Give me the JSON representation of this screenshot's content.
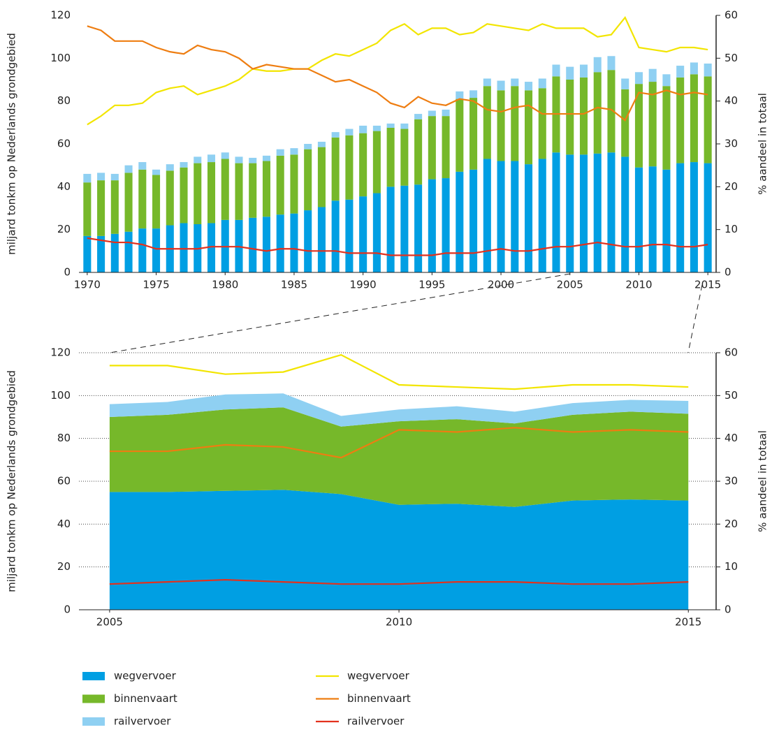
{
  "chart_data": [
    {
      "type": "bar",
      "ylabel": "miljard tonkm op Nederlands grondgebied",
      "y2label": "% aandeel in totaal",
      "x": [
        1970,
        1971,
        1972,
        1973,
        1974,
        1975,
        1976,
        1977,
        1978,
        1979,
        1980,
        1981,
        1982,
        1983,
        1984,
        1985,
        1986,
        1987,
        1988,
        1989,
        1990,
        1991,
        1992,
        1993,
        1994,
        1995,
        1996,
        1997,
        1998,
        1999,
        2000,
        2001,
        2002,
        2003,
        2004,
        2005,
        2006,
        2007,
        2008,
        2009,
        2010,
        2011,
        2012,
        2013,
        2014,
        2015
      ],
      "xlim": [
        1969.4,
        2015.6
      ],
      "xticks": [
        1970,
        1975,
        1980,
        1985,
        1990,
        1995,
        2000,
        2005,
        2010,
        2015
      ],
      "ylim": [
        0,
        120
      ],
      "yticks": [
        0,
        20,
        40,
        60,
        80,
        100,
        120
      ],
      "y2lim": [
        0,
        60
      ],
      "y2ticks": [
        0,
        10,
        20,
        30,
        40,
        50,
        60
      ],
      "grid": false,
      "series": [
        {
          "name": "wegvervoer",
          "color": "#009fe3",
          "values": [
            17,
            17,
            18,
            19,
            20.5,
            20.5,
            22,
            23,
            22.5,
            23,
            24.5,
            24.5,
            25.5,
            26,
            27,
            27.5,
            29,
            30.5,
            33.5,
            34,
            35.5,
            37,
            40,
            40.5,
            41,
            43.5,
            44,
            47,
            48,
            53,
            52,
            52,
            50.5,
            53,
            56,
            55,
            55,
            55.5,
            56,
            54,
            49,
            49.5,
            48,
            51,
            51.5,
            51
          ]
        },
        {
          "name": "binnenvaart",
          "color": "#76b82a",
          "values": [
            25,
            26,
            25,
            27.5,
            27.5,
            25,
            25.5,
            26,
            28.5,
            28.5,
            28.5,
            26.5,
            25.5,
            26,
            27.5,
            27.5,
            28.5,
            28,
            29.5,
            30,
            29.5,
            29,
            27.5,
            26.5,
            30.5,
            29.5,
            29,
            34,
            33.5,
            34,
            33,
            35,
            34.5,
            33,
            35.5,
            35,
            36,
            38,
            38.5,
            31.5,
            39,
            39.5,
            39,
            40,
            41,
            40.5
          ]
        },
        {
          "name": "railvervoer",
          "color": "#8fd0f2",
          "values": [
            4,
            3.5,
            3,
            3.5,
            3.5,
            2.5,
            3,
            2.5,
            3,
            3.5,
            3,
            3,
            2.5,
            2.5,
            3,
            3,
            2.5,
            2.5,
            2.5,
            3,
            3.5,
            2.5,
            2,
            2.5,
            2.5,
            2.5,
            3,
            3.5,
            3.5,
            3.5,
            4.5,
            3.5,
            4,
            4.5,
            5.5,
            6,
            6,
            7,
            6.5,
            5,
            5.5,
            6,
            5.5,
            5.5,
            5.5,
            6
          ]
        },
        {
          "name": "wegvervoer",
          "type": "line",
          "axis": "y2",
          "color": "#f2e500",
          "values": [
            34.5,
            36.5,
            39,
            39,
            39.5,
            42,
            43,
            43.5,
            41.5,
            42.5,
            43.5,
            45,
            47.5,
            47,
            47,
            47.5,
            47.5,
            49.5,
            51,
            50.5,
            52,
            53.5,
            56.5,
            58,
            55.5,
            57,
            57,
            55.5,
            56,
            58,
            57.5,
            57,
            56.5,
            58,
            57,
            57,
            57,
            55,
            55.5,
            59.5,
            52.5,
            52,
            51.5,
            52.5,
            52.5,
            52
          ]
        },
        {
          "name": "binnenvaart",
          "type": "line",
          "axis": "y2",
          "color": "#ee7d11",
          "values": [
            57.5,
            56.5,
            54,
            54,
            54,
            52.5,
            51.5,
            51,
            53,
            52,
            51.5,
            50,
            47.5,
            48.5,
            48,
            47.5,
            47.5,
            46,
            44.5,
            45,
            43.5,
            42,
            39.5,
            38.5,
            41,
            39.5,
            39,
            40.5,
            40,
            38,
            37.5,
            38.5,
            39,
            37,
            37,
            37,
            37,
            38.5,
            38,
            35.5,
            42,
            41.5,
            42.5,
            41.5,
            42,
            41.5
          ]
        },
        {
          "name": "railvervoer",
          "type": "line",
          "axis": "y2",
          "color": "#e3311d",
          "values": [
            8,
            7.5,
            7,
            7,
            6.5,
            5.5,
            5.5,
            5.5,
            5.5,
            6,
            6,
            6,
            5.5,
            5,
            5.5,
            5.5,
            5,
            5,
            5,
            4.5,
            4.5,
            4.5,
            4,
            4,
            4,
            4,
            4.5,
            4.5,
            4.5,
            5,
            5.5,
            5,
            5,
            5.5,
            6,
            6,
            6.5,
            7,
            6.5,
            6,
            6,
            6.5,
            6.5,
            6,
            6,
            6.5
          ]
        }
      ]
    },
    {
      "type": "area",
      "ylabel": "miljard tonkm op Nederlands grondgebied",
      "y2label": "% aandeel in totaal",
      "x": [
        2005,
        2006,
        2007,
        2008,
        2009,
        2010,
        2011,
        2012,
        2013,
        2014,
        2015
      ],
      "xlim": [
        2004.47,
        2015.48
      ],
      "xticks": [
        2005,
        2010,
        2015
      ],
      "ylim": [
        0,
        120
      ],
      "yticks": [
        0,
        20,
        40,
        60,
        80,
        100,
        120
      ],
      "y2lim": [
        0,
        60
      ],
      "y2ticks": [
        0,
        10,
        20,
        30,
        40,
        50,
        60
      ],
      "grid": true,
      "series": [
        {
          "name": "wegvervoer",
          "color": "#009fe3",
          "values": [
            55,
            55,
            55.5,
            56,
            54,
            49,
            49.5,
            48,
            51,
            51.5,
            51
          ]
        },
        {
          "name": "binnenvaart",
          "color": "#76b82a",
          "values": [
            35,
            36,
            38,
            38.5,
            31.5,
            39,
            39.5,
            39,
            40,
            41,
            40.5
          ]
        },
        {
          "name": "railvervoer",
          "color": "#8fd0f2",
          "values": [
            6,
            6,
            7,
            6.5,
            5,
            5.5,
            6,
            5.5,
            5.5,
            5.5,
            6
          ]
        },
        {
          "name": "wegvervoer",
          "type": "line",
          "axis": "y2",
          "color": "#f2e500",
          "values": [
            57,
            57,
            55,
            55.5,
            59.5,
            52.5,
            52,
            51.5,
            52.5,
            52.5,
            52
          ]
        },
        {
          "name": "binnenvaart",
          "type": "line",
          "axis": "y2",
          "color": "#ee7d11",
          "values": [
            37,
            37,
            38.5,
            38,
            35.5,
            42,
            41.5,
            42.5,
            41.5,
            42,
            41.5
          ]
        },
        {
          "name": "railvervoer",
          "type": "line",
          "axis": "y2",
          "color": "#e3311d",
          "values": [
            6,
            6.5,
            7,
            6.5,
            6,
            6,
            6.5,
            6.5,
            6,
            6,
            6.5
          ]
        }
      ]
    }
  ]
}
